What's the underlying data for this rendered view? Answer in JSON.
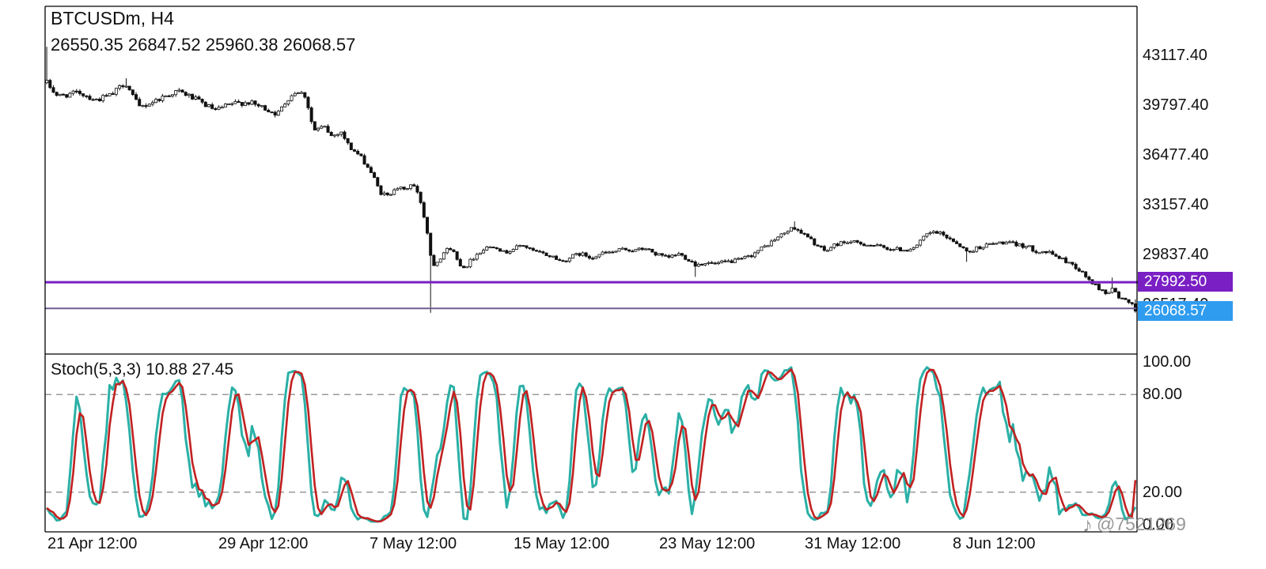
{
  "header": {
    "symbol_timeframe": "BTCUSDm, H4",
    "ohlc_readout": "26550.35 26847.52 25960.38 26068.57"
  },
  "indicator": {
    "label": "Stoch(5,3,3) 10.88 27.45"
  },
  "price_axis": {
    "labels": [
      "43117.40",
      "39797.40",
      "36477.40",
      "33157.40",
      "29837.40",
      "26517.40"
    ]
  },
  "stoch_axis": {
    "labels": [
      "100.00",
      "80.00",
      "20.00",
      "0.00"
    ]
  },
  "time_axis": {
    "labels": [
      "21 Apr 12:00",
      "29 Apr 12:00",
      "7 May 12:00",
      "15 May 12:00",
      "23 May 12:00",
      "31 May 12:00",
      "8 Jun 12:00"
    ]
  },
  "price_lines": {
    "resistance_label": "27992.50",
    "current_label": "26068.57"
  },
  "watermark": {
    "text": "@7521269"
  },
  "chart_data": {
    "type": "candlestick",
    "symbol": "BTCUSDm",
    "timeframe": "H4",
    "title": "BTCUSDm, H4",
    "last_ohlc": {
      "open": 26550.35,
      "high": 26847.52,
      "low": 25960.38,
      "close": 26068.57
    },
    "y_range": [
      23200,
      46400
    ],
    "price_axis_values": [
      43117.4,
      39797.4,
      36477.4,
      33157.4,
      29837.4,
      26517.4
    ],
    "horizontal_lines": [
      {
        "name": "resistance-line",
        "price": 27992.5,
        "color": "#7a1fc4",
        "width": 3
      },
      {
        "name": "support-line",
        "price": 26250,
        "color": "#6e5e92",
        "width": 2
      }
    ],
    "candle_count": 330,
    "candle_color_up": "#ffffff",
    "candle_color_down": "#111111",
    "price_path": [
      [
        0.0,
        41300
      ],
      [
        0.01,
        40400
      ],
      [
        0.03,
        40650
      ],
      [
        0.045,
        40150
      ],
      [
        0.06,
        40500
      ],
      [
        0.072,
        41350
      ],
      [
        0.085,
        39650
      ],
      [
        0.095,
        39950
      ],
      [
        0.105,
        40300
      ],
      [
        0.12,
        40750
      ],
      [
        0.13,
        40450
      ],
      [
        0.145,
        39850
      ],
      [
        0.155,
        39450
      ],
      [
        0.17,
        39900
      ],
      [
        0.185,
        40000
      ],
      [
        0.2,
        39600
      ],
      [
        0.212,
        39200
      ],
      [
        0.222,
        40300
      ],
      [
        0.23,
        40800
      ],
      [
        0.238,
        40400
      ],
      [
        0.245,
        38100
      ],
      [
        0.255,
        38350
      ],
      [
        0.262,
        37700
      ],
      [
        0.27,
        38100
      ],
      [
        0.278,
        37000
      ],
      [
        0.285,
        36600
      ],
      [
        0.292,
        36000
      ],
      [
        0.299,
        35200
      ],
      [
        0.306,
        34000
      ],
      [
        0.314,
        33700
      ],
      [
        0.32,
        34400
      ],
      [
        0.328,
        34100
      ],
      [
        0.336,
        34600
      ],
      [
        0.343,
        33500
      ],
      [
        0.349,
        31600
      ],
      [
        0.354,
        29100
      ],
      [
        0.36,
        29500
      ],
      [
        0.366,
        30100
      ],
      [
        0.372,
        30300
      ],
      [
        0.378,
        29300
      ],
      [
        0.384,
        28950
      ],
      [
        0.39,
        29500
      ],
      [
        0.397,
        30000
      ],
      [
        0.404,
        30300
      ],
      [
        0.412,
        30450
      ],
      [
        0.42,
        29950
      ],
      [
        0.428,
        30200
      ],
      [
        0.437,
        30500
      ],
      [
        0.445,
        30100
      ],
      [
        0.455,
        29900
      ],
      [
        0.465,
        29700
      ],
      [
        0.473,
        29350
      ],
      [
        0.482,
        29700
      ],
      [
        0.49,
        29900
      ],
      [
        0.5,
        29650
      ],
      [
        0.51,
        29900
      ],
      [
        0.52,
        30000
      ],
      [
        0.531,
        30200
      ],
      [
        0.54,
        30100
      ],
      [
        0.55,
        30250
      ],
      [
        0.56,
        29850
      ],
      [
        0.57,
        29600
      ],
      [
        0.58,
        29900
      ],
      [
        0.59,
        29500
      ],
      [
        0.596,
        29150
      ],
      [
        0.605,
        29300
      ],
      [
        0.614,
        29200
      ],
      [
        0.625,
        29350
      ],
      [
        0.635,
        29450
      ],
      [
        0.645,
        29700
      ],
      [
        0.658,
        30300
      ],
      [
        0.67,
        30900
      ],
      [
        0.68,
        31400
      ],
      [
        0.687,
        31650
      ],
      [
        0.695,
        31200
      ],
      [
        0.702,
        30800
      ],
      [
        0.709,
        30350
      ],
      [
        0.716,
        30050
      ],
      [
        0.724,
        30500
      ],
      [
        0.734,
        30700
      ],
      [
        0.745,
        30600
      ],
      [
        0.755,
        30500
      ],
      [
        0.765,
        30350
      ],
      [
        0.778,
        30200
      ],
      [
        0.79,
        30150
      ],
      [
        0.8,
        30450
      ],
      [
        0.807,
        31100
      ],
      [
        0.815,
        31350
      ],
      [
        0.821,
        31200
      ],
      [
        0.83,
        30900
      ],
      [
        0.838,
        30500
      ],
      [
        0.846,
        29950
      ],
      [
        0.855,
        30300
      ],
      [
        0.865,
        30500
      ],
      [
        0.879,
        30650
      ],
      [
        0.89,
        30500
      ],
      [
        0.9,
        30400
      ],
      [
        0.908,
        30100
      ],
      [
        0.918,
        30000
      ],
      [
        0.926,
        29800
      ],
      [
        0.933,
        29500
      ],
      [
        0.942,
        29200
      ],
      [
        0.95,
        28700
      ],
      [
        0.958,
        28100
      ],
      [
        0.966,
        27600
      ],
      [
        0.973,
        27250
      ],
      [
        0.98,
        27550
      ],
      [
        0.985,
        26950
      ],
      [
        0.99,
        26800
      ],
      [
        0.995,
        26550
      ],
      [
        1.0,
        26068.57
      ]
    ],
    "wick_spikes": [
      {
        "t": 0.0,
        "high": 43700
      },
      {
        "t": 0.072,
        "high": 41600
      },
      {
        "t": 0.354,
        "low": 25950
      },
      {
        "t": 0.596,
        "low": 28350
      },
      {
        "t": 0.687,
        "high": 32050
      },
      {
        "t": 0.846,
        "low": 29350
      },
      {
        "t": 0.978,
        "high": 28300
      }
    ],
    "stochastic": {
      "settings": "5,3,3",
      "k": 10.88,
      "d": 27.45,
      "range": [
        0,
        100
      ],
      "levels": [
        80,
        20
      ],
      "axis_values": [
        100,
        80,
        20,
        0
      ],
      "k_color": "#2bb0a6",
      "d_color": "#c22121",
      "level_color": "#9a9a9a"
    }
  }
}
